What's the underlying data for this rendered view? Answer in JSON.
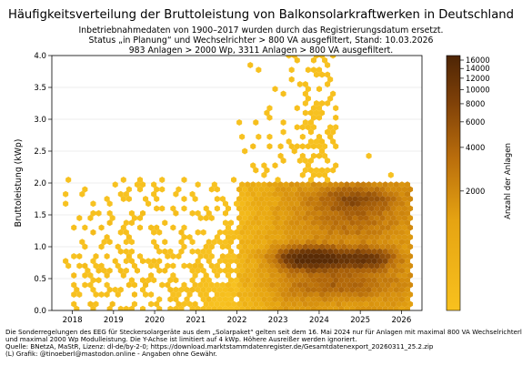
{
  "title": "Häufigkeitsverteilung der Bruttoleistung von Balkonsolarkraftwerken in Deutschland",
  "subtitle_lines": [
    "Inbetriebnahmedaten von 1900–2017 wurden durch das Registrierungsdatum ersetzt.",
    "Status „in Planung“ und Wechselrichter > 800 VA ausgefiltert, Stand: 10.03.2026",
    "983 Anlagen > 2000 Wp, 3311 Anlagen > 800 VA ausgefiltert."
  ],
  "footer_lines": [
    "Die Sonderregelungen des EEG für Steckersolargeräte aus dem „Solarpaket“ gelten seit dem 16. Mai 2024 nur für Anlagen mit maximal 800 VA Wechselrichterleistung",
    "und maximal 2000 Wp Modulleistung. Die Y-Achse ist limitiert auf 4 kWp. Höhere Ausreißer werden ignoriert.",
    "Quelle: BNetzA, MaStR, Lizenz: dl-de/by-2-0; https://download.marktstammdatenregister.de/Gesamtdatenexport_20260311_25.2.zip",
    "(L) Grafik: @tinoeberl@mastodon.online - Angaben ohne Gewähr."
  ],
  "colors": {
    "low": "#f6be1c",
    "mid": "#e0a40c",
    "high": "#b66b0a",
    "peak": "#5a2c06",
    "gridline": "#d9d9d9"
  },
  "chart_data": {
    "type": "heatmap",
    "subtype": "hexbin",
    "xlabel": "",
    "ylabel": "Bruttoleistung (kWp)",
    "xlim": [
      2017.5,
      2026.5
    ],
    "ylim": [
      0.0,
      4.0
    ],
    "x_ticks": [
      "2018",
      "2019",
      "2020",
      "2021",
      "2022",
      "2023",
      "2024",
      "2025",
      "2026"
    ],
    "y_ticks": [
      "0.0",
      "0.5",
      "1.0",
      "1.5",
      "2.0",
      "2.5",
      "3.0",
      "3.5",
      "4.0"
    ],
    "grid": true,
    "colorbar": {
      "label": "Anzahl der Anlagen",
      "scale": "log",
      "ticks": [
        "16000",
        "14000",
        "12000",
        "10000",
        "8000",
        "6000",
        "4000",
        "2000"
      ]
    },
    "density_regions": [
      {
        "x_range": [
          2017.8,
          2022.0
        ],
        "y_range": [
          0.0,
          1.6
        ],
        "level": "sparse"
      },
      {
        "x_range": [
          2022.0,
          2026.25
        ],
        "y_range": [
          0.0,
          2.0
        ],
        "level": "dense"
      },
      {
        "x_range": [
          2023.0,
          2024.3
        ],
        "y_range": [
          0.7,
          0.95
        ],
        "level": "peak"
      },
      {
        "x_range": [
          2024.8,
          2025.6
        ],
        "y_range": [
          0.7,
          0.95
        ],
        "level": "high"
      },
      {
        "x_range": [
          2022.8,
          2024.4
        ],
        "y_range": [
          2.0,
          4.0
        ],
        "level": "scattered"
      }
    ]
  }
}
